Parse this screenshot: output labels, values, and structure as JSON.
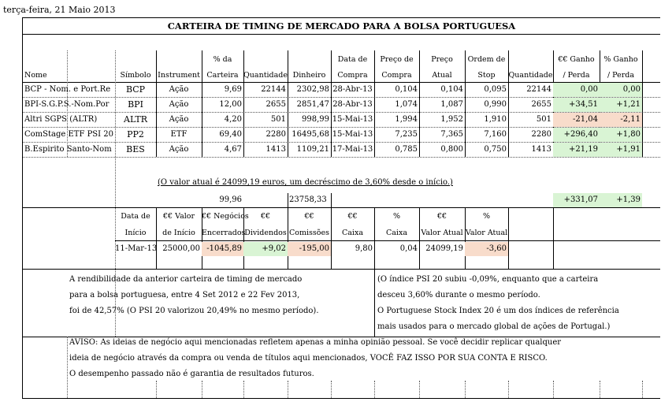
{
  "date": "terça-feira, 21 Maio 2013",
  "title": "CARTEIRA DE TIMING DE MERCADO PARA A BOLSA PORTUGUESA",
  "headers": {
    "nome": "Nome",
    "simbolo": "Símbolo",
    "instrumento": "Instrument",
    "pct_carteira_1": "% da",
    "pct_carteira_2": "Carteira",
    "quantidade": "Quantidade",
    "dinheiro": "Dinheiro",
    "data_compra_1": "Data de",
    "data_compra_2": "Compra",
    "preco_compra_1": "Preço de",
    "preco_compra_2": "Compra",
    "preco_atual_1": "Preço",
    "preco_atual_2": "Atual",
    "ordem_stop_1": "Ordem de",
    "ordem_stop_2": "Stop",
    "quantidade2": "Quantidade",
    "ganho_eur_1": "€€ Ganho",
    "ganho_eur_2": "/ Perda",
    "ganho_pct_1": "% Ganho",
    "ganho_pct_2": "/ Perda"
  },
  "rows": [
    {
      "nome": "BCP - Nom. e Port.Re",
      "simbolo": "BCP",
      "instr": "Ação",
      "pct": "9,69",
      "qtd": "22144",
      "dinheiro": "2302,98",
      "data": "28-Abr-13",
      "pcompra": "0,104",
      "patual": "0,104",
      "stop": "0,095",
      "qtd2": "22144",
      "ganho": "0,00",
      "ganho_pct": "0,00"
    },
    {
      "nome": "BPI-S.G.P.S.-Nom.Por",
      "simbolo": "BPI",
      "instr": "Ação",
      "pct": "12,00",
      "qtd": "2655",
      "dinheiro": "2851,47",
      "data": "28-Abr-13",
      "pcompra": "1,074",
      "patual": "1,087",
      "stop": "0,990",
      "qtd2": "2655",
      "ganho": "+34,51",
      "ganho_pct": "+1,21"
    },
    {
      "nome": "Altri SGPS (ALTR)",
      "simbolo": "ALTR",
      "instr": "Ação",
      "pct": "4,20",
      "qtd": "501",
      "dinheiro": "998,99",
      "data": "15-Mai-13",
      "pcompra": "1,994",
      "patual": "1,952",
      "stop": "1,910",
      "qtd2": "501",
      "ganho": "-21,04",
      "ganho_pct": "-2,11"
    },
    {
      "nome": "ComStage ETF PSI 20",
      "simbolo": "PP2",
      "instr": "ETF",
      "pct": "69,40",
      "qtd": "2280",
      "dinheiro": "16495,68",
      "data": "15-Mai-13",
      "pcompra": "7,235",
      "patual": "7,365",
      "stop": "7,160",
      "qtd2": "2280",
      "ganho": "+296,40",
      "ganho_pct": "+1,80"
    },
    {
      "nome": "B.Espirito Santo-Nom",
      "simbolo": "BES",
      "instr": "Ação",
      "pct": "4,67",
      "qtd": "1413",
      "dinheiro": "1109,21",
      "data": "17-Mai-13",
      "pcompra": "0,785",
      "patual": "0,800",
      "stop": "0,750",
      "qtd2": "1413",
      "ganho": "+21,19",
      "ganho_pct": "+1,91"
    }
  ],
  "summary_note": "(O valor atual é 24099,19 euros, um decréscimo de 3,60% desde o início.)",
  "totals": {
    "pct": "99,96",
    "dinheiro": "23758,33",
    "ganho": "+331,07",
    "ganho_pct": "+1,39"
  },
  "summary_headers": {
    "data_inicio_1": "Data de",
    "data_inicio_2": "Início",
    "valor_inicio_1": "€€ Valor",
    "valor_inicio_2": "de Início",
    "negocios_1": "€€ Negócios",
    "negocios_2": "Encerrados",
    "dividendos_1": "€€",
    "dividendos_2": "Dividendos",
    "comissoes_1": "€€",
    "comissoes_2": "Comissões",
    "caixa_1": "€€",
    "caixa_2": "Caixa",
    "caixa_pct_1": "%",
    "caixa_pct_2": "Caixa",
    "valor_atual_1": "€€",
    "valor_atual_2": "Valor Atual",
    "valor_atual_pct_1": "%",
    "valor_atual_pct_2": "Valor Atual"
  },
  "summary": {
    "data_inicio": "11-Mar-13",
    "valor_inicio": "25000,00",
    "negocios": "-1045,89",
    "dividendos": "+9,02",
    "comissoes": "-195,00",
    "caixa": "9,80",
    "caixa_pct": "0,04",
    "valor_atual": "24099,19",
    "valor_atual_pct": "-3,60"
  },
  "para_left": [
    "A rendibilidade da anterior carteira de timing de mercado",
    "para a bolsa portuguesa, entre 4 Set 2012 e 22 Fev 2013,",
    "foi de 42,57% (O PSI 20 valorizou 20,49% no mesmo período)."
  ],
  "para_right": [
    "(O índice PSI 20 subiu -0,09%, enquanto que a carteira",
    "desceu 3,60% durante o mesmo período.",
    "O Portuguese Stock Index 20 é um dos índices de referência",
    "mais usados para o mercado global de ações de Portugal.)"
  ],
  "disclaimer": [
    "AVISO: As ideias de negócio aqui mencionadas refletem apenas a minha opinião pessoal. Se você decidir replicar qualquer",
    "ideia de negócio através da compra ou venda de títulos aqui mencionados, VOCÊ FAZ ISSO POR SUA CONTA E RISCO.",
    "O desempenho passado não é garantia de resultados futuros."
  ],
  "colors": {
    "gain": "#d9f4d4",
    "loss": "#f8dccb"
  }
}
